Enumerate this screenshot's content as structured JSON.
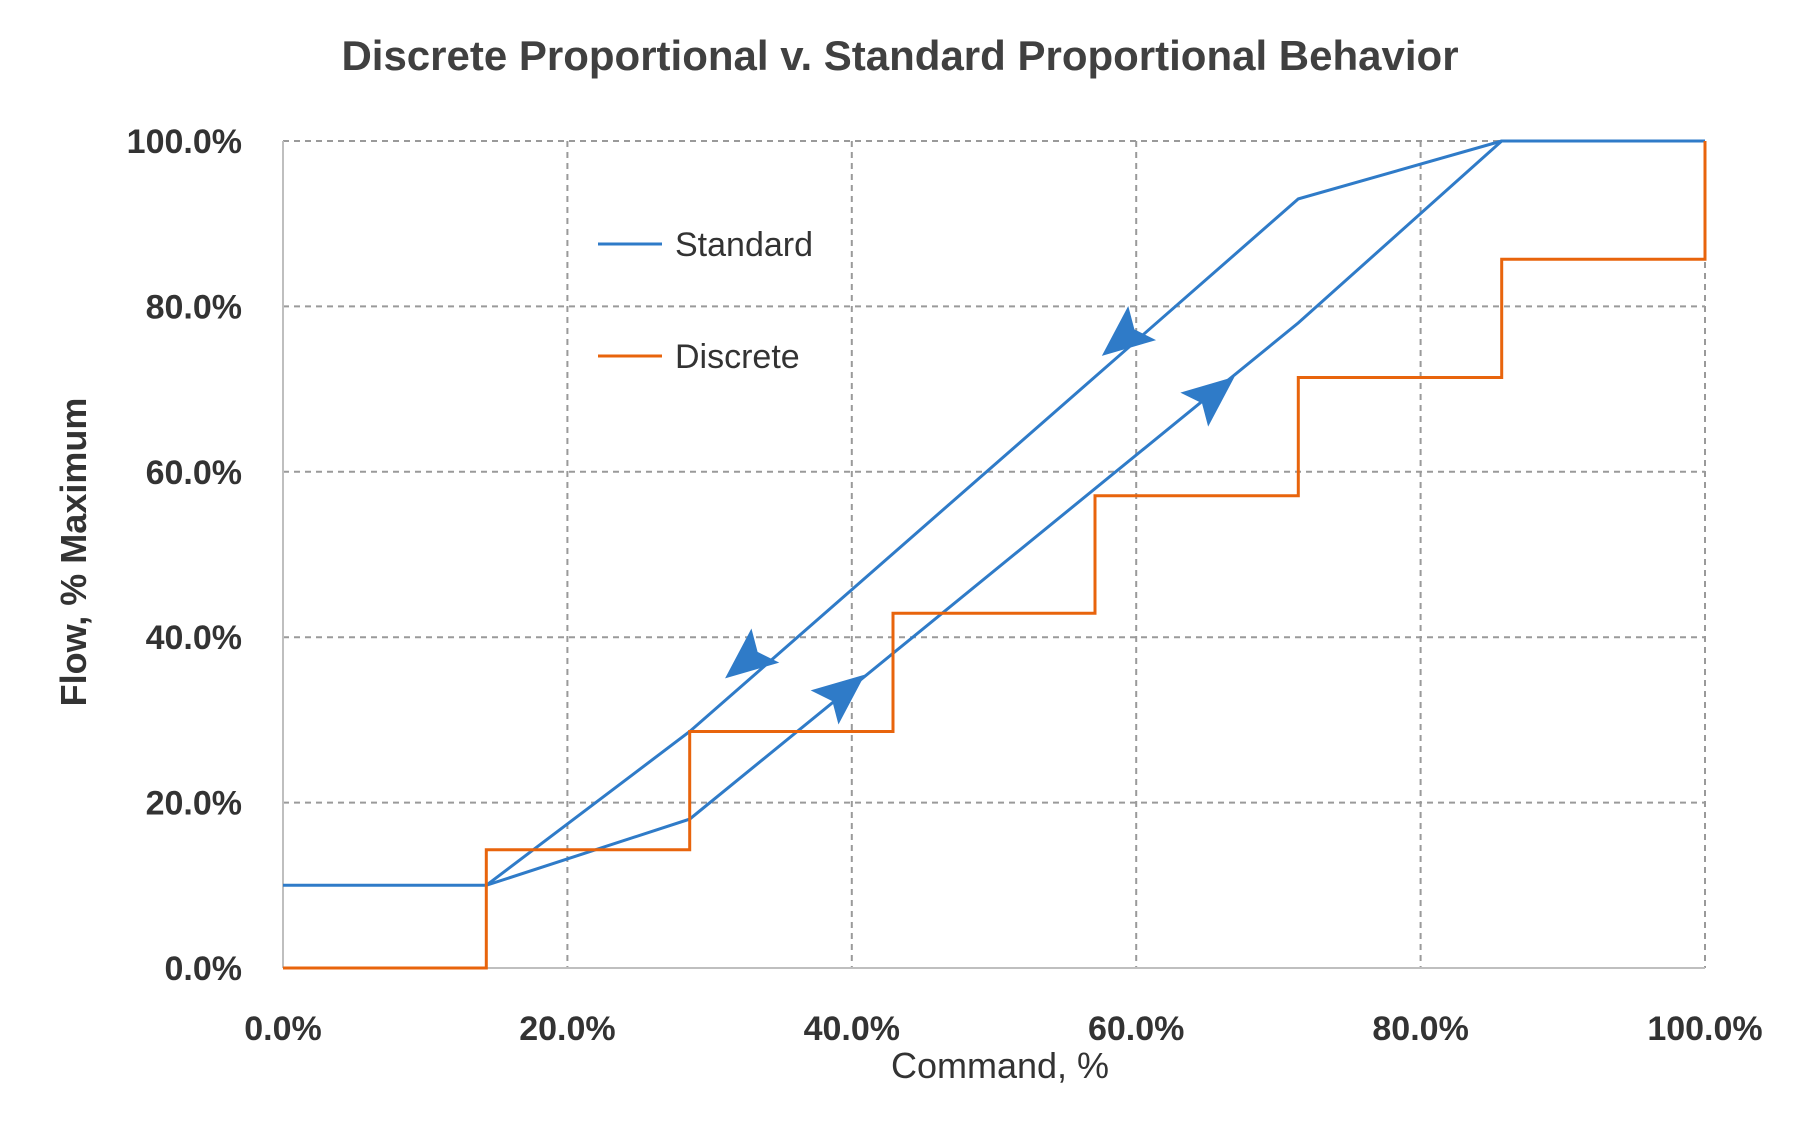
{
  "chart_data": {
    "type": "line",
    "title": "Discrete Proportional v. Standard Proportional Behavior",
    "xlabel": "Command, %",
    "ylabel": "Flow, % Maximum",
    "xlim": [
      0,
      100
    ],
    "ylim": [
      0,
      100
    ],
    "x_ticks": [
      "0.0%",
      "20.0%",
      "40.0%",
      "60.0%",
      "80.0%",
      "100.0%"
    ],
    "y_ticks": [
      "0.0%",
      "20.0%",
      "40.0%",
      "60.0%",
      "80.0%",
      "100.0%"
    ],
    "grid": true,
    "legend_position": "upper-left-inside",
    "colors": {
      "Standard": "#2F7BC8",
      "Discrete": "#E8640C"
    },
    "series": [
      {
        "name": "Standard",
        "segments": [
          {
            "direction": "increasing",
            "points": [
              [
                0,
                10
              ],
              [
                14.3,
                10
              ],
              [
                28.6,
                18
              ],
              [
                71.4,
                78
              ],
              [
                85.7,
                100
              ],
              [
                100,
                100
              ]
            ]
          },
          {
            "direction": "decreasing",
            "points": [
              [
                85.7,
                100
              ],
              [
                71.4,
                93
              ],
              [
                28.6,
                28.6
              ],
              [
                14.3,
                10
              ]
            ]
          }
        ],
        "arrows": [
          {
            "at": [
              39.5,
              33.5
            ],
            "direction": "up"
          },
          {
            "at": [
              65.5,
              69.5
            ],
            "direction": "up"
          },
          {
            "at": [
              59,
              76
            ],
            "direction": "down"
          },
          {
            "at": [
              32.5,
              37
            ],
            "direction": "down"
          }
        ]
      },
      {
        "name": "Discrete",
        "points": [
          [
            0,
            0
          ],
          [
            14.3,
            0
          ],
          [
            14.3,
            14.3
          ],
          [
            28.6,
            14.3
          ],
          [
            28.6,
            28.6
          ],
          [
            42.9,
            28.6
          ],
          [
            42.9,
            42.9
          ],
          [
            57.1,
            42.9
          ],
          [
            57.1,
            57.1
          ],
          [
            71.4,
            57.1
          ],
          [
            71.4,
            71.4
          ],
          [
            85.7,
            71.4
          ],
          [
            85.7,
            85.7
          ],
          [
            100,
            85.7
          ],
          [
            100,
            100
          ]
        ]
      }
    ]
  }
}
